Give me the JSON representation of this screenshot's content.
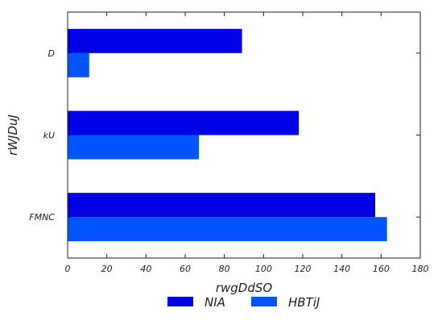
{
  "chart_data": {
    "type": "bar",
    "orientation": "horizontal",
    "categories": [
      "D",
      "kU",
      "FMNC"
    ],
    "series": [
      {
        "name": "NIA",
        "values": [
          89,
          118,
          157
        ],
        "color": "#0000e6"
      },
      {
        "name": "HBTiJ",
        "values": [
          11,
          67,
          163
        ],
        "color": "#0055ff"
      }
    ],
    "xlabel": "rwgDdSO",
    "ylabel": "rWJDuJ",
    "xlim": [
      0,
      180
    ],
    "xticks": [
      0,
      20,
      40,
      60,
      80,
      100,
      120,
      140,
      160,
      180
    ],
    "grid": false,
    "legend_position": "bottom-center"
  }
}
